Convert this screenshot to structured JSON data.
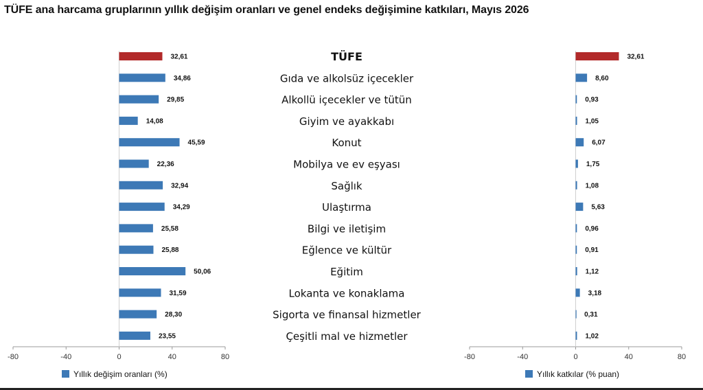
{
  "title": "TÜFE ana harcama gruplarının yıllık değişim oranları ve genel endeks değişimine katkıları, Mayıs 2026",
  "colors": {
    "headline": "#b22a2a",
    "series": "#3d79b6",
    "axis": "#999999"
  },
  "chart_data": {
    "type": "bar",
    "orientation": "horizontal",
    "categories": [
      "TÜFE",
      "Gıda ve alkolsüz içecekler",
      "Alkollü içecekler ve tütün",
      "Giyim ve ayakkabı",
      "Konut",
      "Mobilya ve ev eşyası",
      "Sağlık",
      "Ulaştırma",
      "Bilgi ve iletişim",
      "Eğlence ve kültür",
      "Eğitim",
      "Lokanta ve konaklama",
      "Sigorta ve finansal hizmetler",
      "Çeşitli mal ve hizmetler"
    ],
    "series": [
      {
        "name": "Yıllık değişim oranları (%)",
        "values": [
          32.61,
          34.86,
          29.85,
          14.08,
          45.59,
          22.36,
          32.94,
          34.29,
          25.58,
          25.88,
          50.06,
          31.59,
          28.3,
          23.55
        ],
        "labels": [
          "32,61",
          "34,86",
          "29,85",
          "14,08",
          "45,59",
          "22,36",
          "32,94",
          "34,29",
          "25,58",
          "25,88",
          "50,06",
          "31,59",
          "28,30",
          "23,55"
        ],
        "xlim": [
          -80,
          80
        ],
        "ticks": [
          "-80",
          "-40",
          "0",
          "40",
          "80"
        ],
        "tick_values": [
          -80,
          -40,
          0,
          40,
          80
        ]
      },
      {
        "name": "Yıllık katkılar (% puan)",
        "values": [
          32.61,
          8.6,
          0.93,
          1.05,
          6.07,
          1.75,
          1.08,
          5.63,
          0.96,
          0.91,
          1.12,
          3.18,
          0.31,
          1.02
        ],
        "labels": [
          "32,61",
          "8,60",
          "0,93",
          "1,05",
          "6,07",
          "1,75",
          "1,08",
          "5,63",
          "0,96",
          "0,91",
          "1,12",
          "3,18",
          "0,31",
          "1,02"
        ],
        "xlim": [
          -80,
          80
        ],
        "ticks": [
          "-80",
          "-40",
          "0",
          "40",
          "80"
        ],
        "tick_values": [
          -80,
          -40,
          0,
          40,
          80
        ]
      }
    ],
    "highlight_category": "TÜFE",
    "legend_position": "bottom-left",
    "grid": false
  }
}
